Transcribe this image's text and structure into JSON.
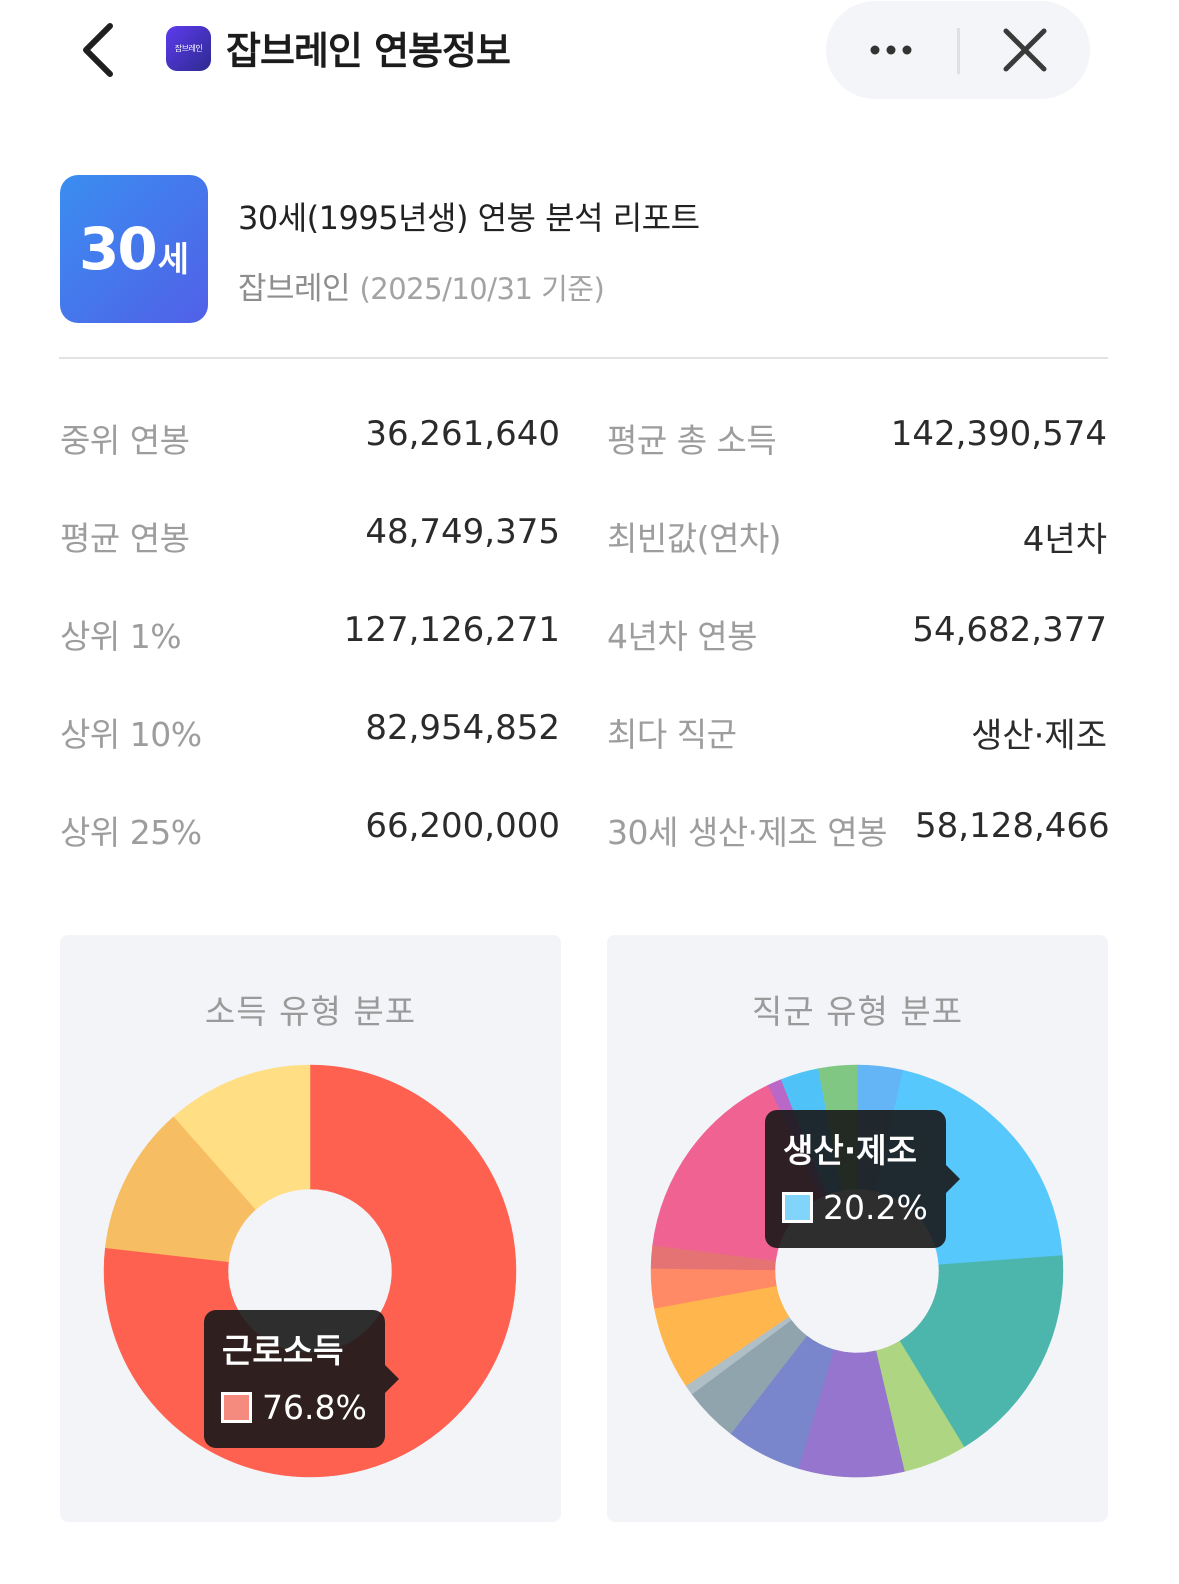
{
  "header": {
    "app_title": "잡브레인 연봉정보",
    "logo_text": "잡브레인",
    "icons": [
      "back-arrow-icon",
      "more-dots-icon",
      "close-icon"
    ]
  },
  "report": {
    "age_number": "30",
    "age_unit": "세",
    "title": "30세(1995년생) 연봉 분석 리포트",
    "source": "잡브레인",
    "date_note": "(2025/10/31 기준)"
  },
  "stats": {
    "left": [
      {
        "label": "중위 연봉",
        "value": "36,261,640"
      },
      {
        "label": "평균 연봉",
        "value": "48,749,375"
      },
      {
        "label": "상위 1%",
        "value": "127,126,271"
      },
      {
        "label": "상위 10%",
        "value": "82,954,852"
      },
      {
        "label": "상위 25%",
        "value": "66,200,000"
      }
    ],
    "right": [
      {
        "label": "평균 총 소득",
        "value": "142,390,574"
      },
      {
        "label": "최빈값(연차)",
        "value": "4년차"
      },
      {
        "label": "4년차 연봉",
        "value": "54,682,377"
      },
      {
        "label": "최다 직군",
        "value": "생산·제조"
      },
      {
        "label": "30세 생산·제조 연봉",
        "value": "58,128,466"
      }
    ]
  },
  "chart_data": [
    {
      "type": "pie",
      "title": "소득 유형 분포",
      "donut": true,
      "slices": [
        {
          "value": 76.8,
          "color": "#ff6150"
        },
        {
          "value": 11.7,
          "color": "#f7bd62"
        },
        {
          "value": 11.5,
          "color": "#ffde84"
        }
      ],
      "tooltip": {
        "label": "근로소득",
        "value": "76.8%",
        "color": "#f58a7e"
      }
    },
    {
      "type": "pie",
      "title": "직군 유형 분포",
      "donut": true,
      "slices": [
        {
          "value": 3.6,
          "color": "#64b5f6"
        },
        {
          "value": 20.2,
          "color": "#56c8fc"
        },
        {
          "value": 17.5,
          "color": "#4db6ac"
        },
        {
          "value": 5.0,
          "color": "#aed581"
        },
        {
          "value": 8.3,
          "color": "#9575cd"
        },
        {
          "value": 5.9,
          "color": "#7986cb"
        },
        {
          "value": 4.3,
          "color": "#90a4ae"
        },
        {
          "value": 0.8,
          "color": "#b0bec5"
        },
        {
          "value": 6.5,
          "color": "#ffb74d"
        },
        {
          "value": 3.1,
          "color": "#ff8a65"
        },
        {
          "value": 1.8,
          "color": "#e57373"
        },
        {
          "value": 15.9,
          "color": "#f06292"
        },
        {
          "value": 1.1,
          "color": "#ba68c8"
        },
        {
          "value": 3.0,
          "color": "#4fc3f7"
        },
        {
          "value": 3.0,
          "color": "#81c784"
        }
      ],
      "tooltip": {
        "label": "생산·제조",
        "value": "20.2%",
        "color": "#81d4fa"
      }
    }
  ]
}
